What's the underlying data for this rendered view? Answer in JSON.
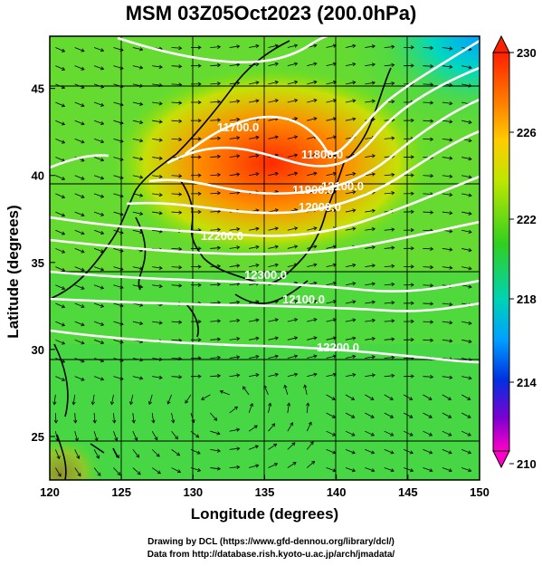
{
  "title": "MSM 03Z05Oct2023 (200.0hPa)",
  "xlabel": "Longitude (degrees)",
  "ylabel": "Latitude  (degrees)",
  "x_ticks": [
    "120",
    "125",
    "130",
    "135",
    "140",
    "145",
    "150"
  ],
  "y_ticks": [
    "25",
    "30",
    "35",
    "40",
    "45"
  ],
  "colorbar_ticks": [
    "230",
    "226",
    "222",
    "218",
    "214",
    "210"
  ],
  "contour_labels": [
    "11700.0",
    "11800.0",
    "11900.0",
    "12000.0",
    "12100.0",
    "12200.0",
    "12300.0",
    "12100.0",
    "12200.0"
  ],
  "credit_line1": "Drawing by DCL (https://www.gfd-dennou.org/library/dcl/)",
  "credit_line2": "Data from http://database.rish.kyoto-u.ac.jp/arch/jmadata/",
  "colors": {
    "warm_max": "#ff2000",
    "orange": "#ff8a00",
    "yellow_green": "#c8e600",
    "green": "#3cd21e",
    "cyan": "#00d2c8",
    "blue": "#0050ff",
    "magenta": "#ff00c8"
  },
  "chart_data": {
    "type": "map",
    "xlim": [
      120,
      150
    ],
    "ylim": [
      22.5,
      48
    ],
    "colorbar_range": [
      210,
      230
    ]
  }
}
